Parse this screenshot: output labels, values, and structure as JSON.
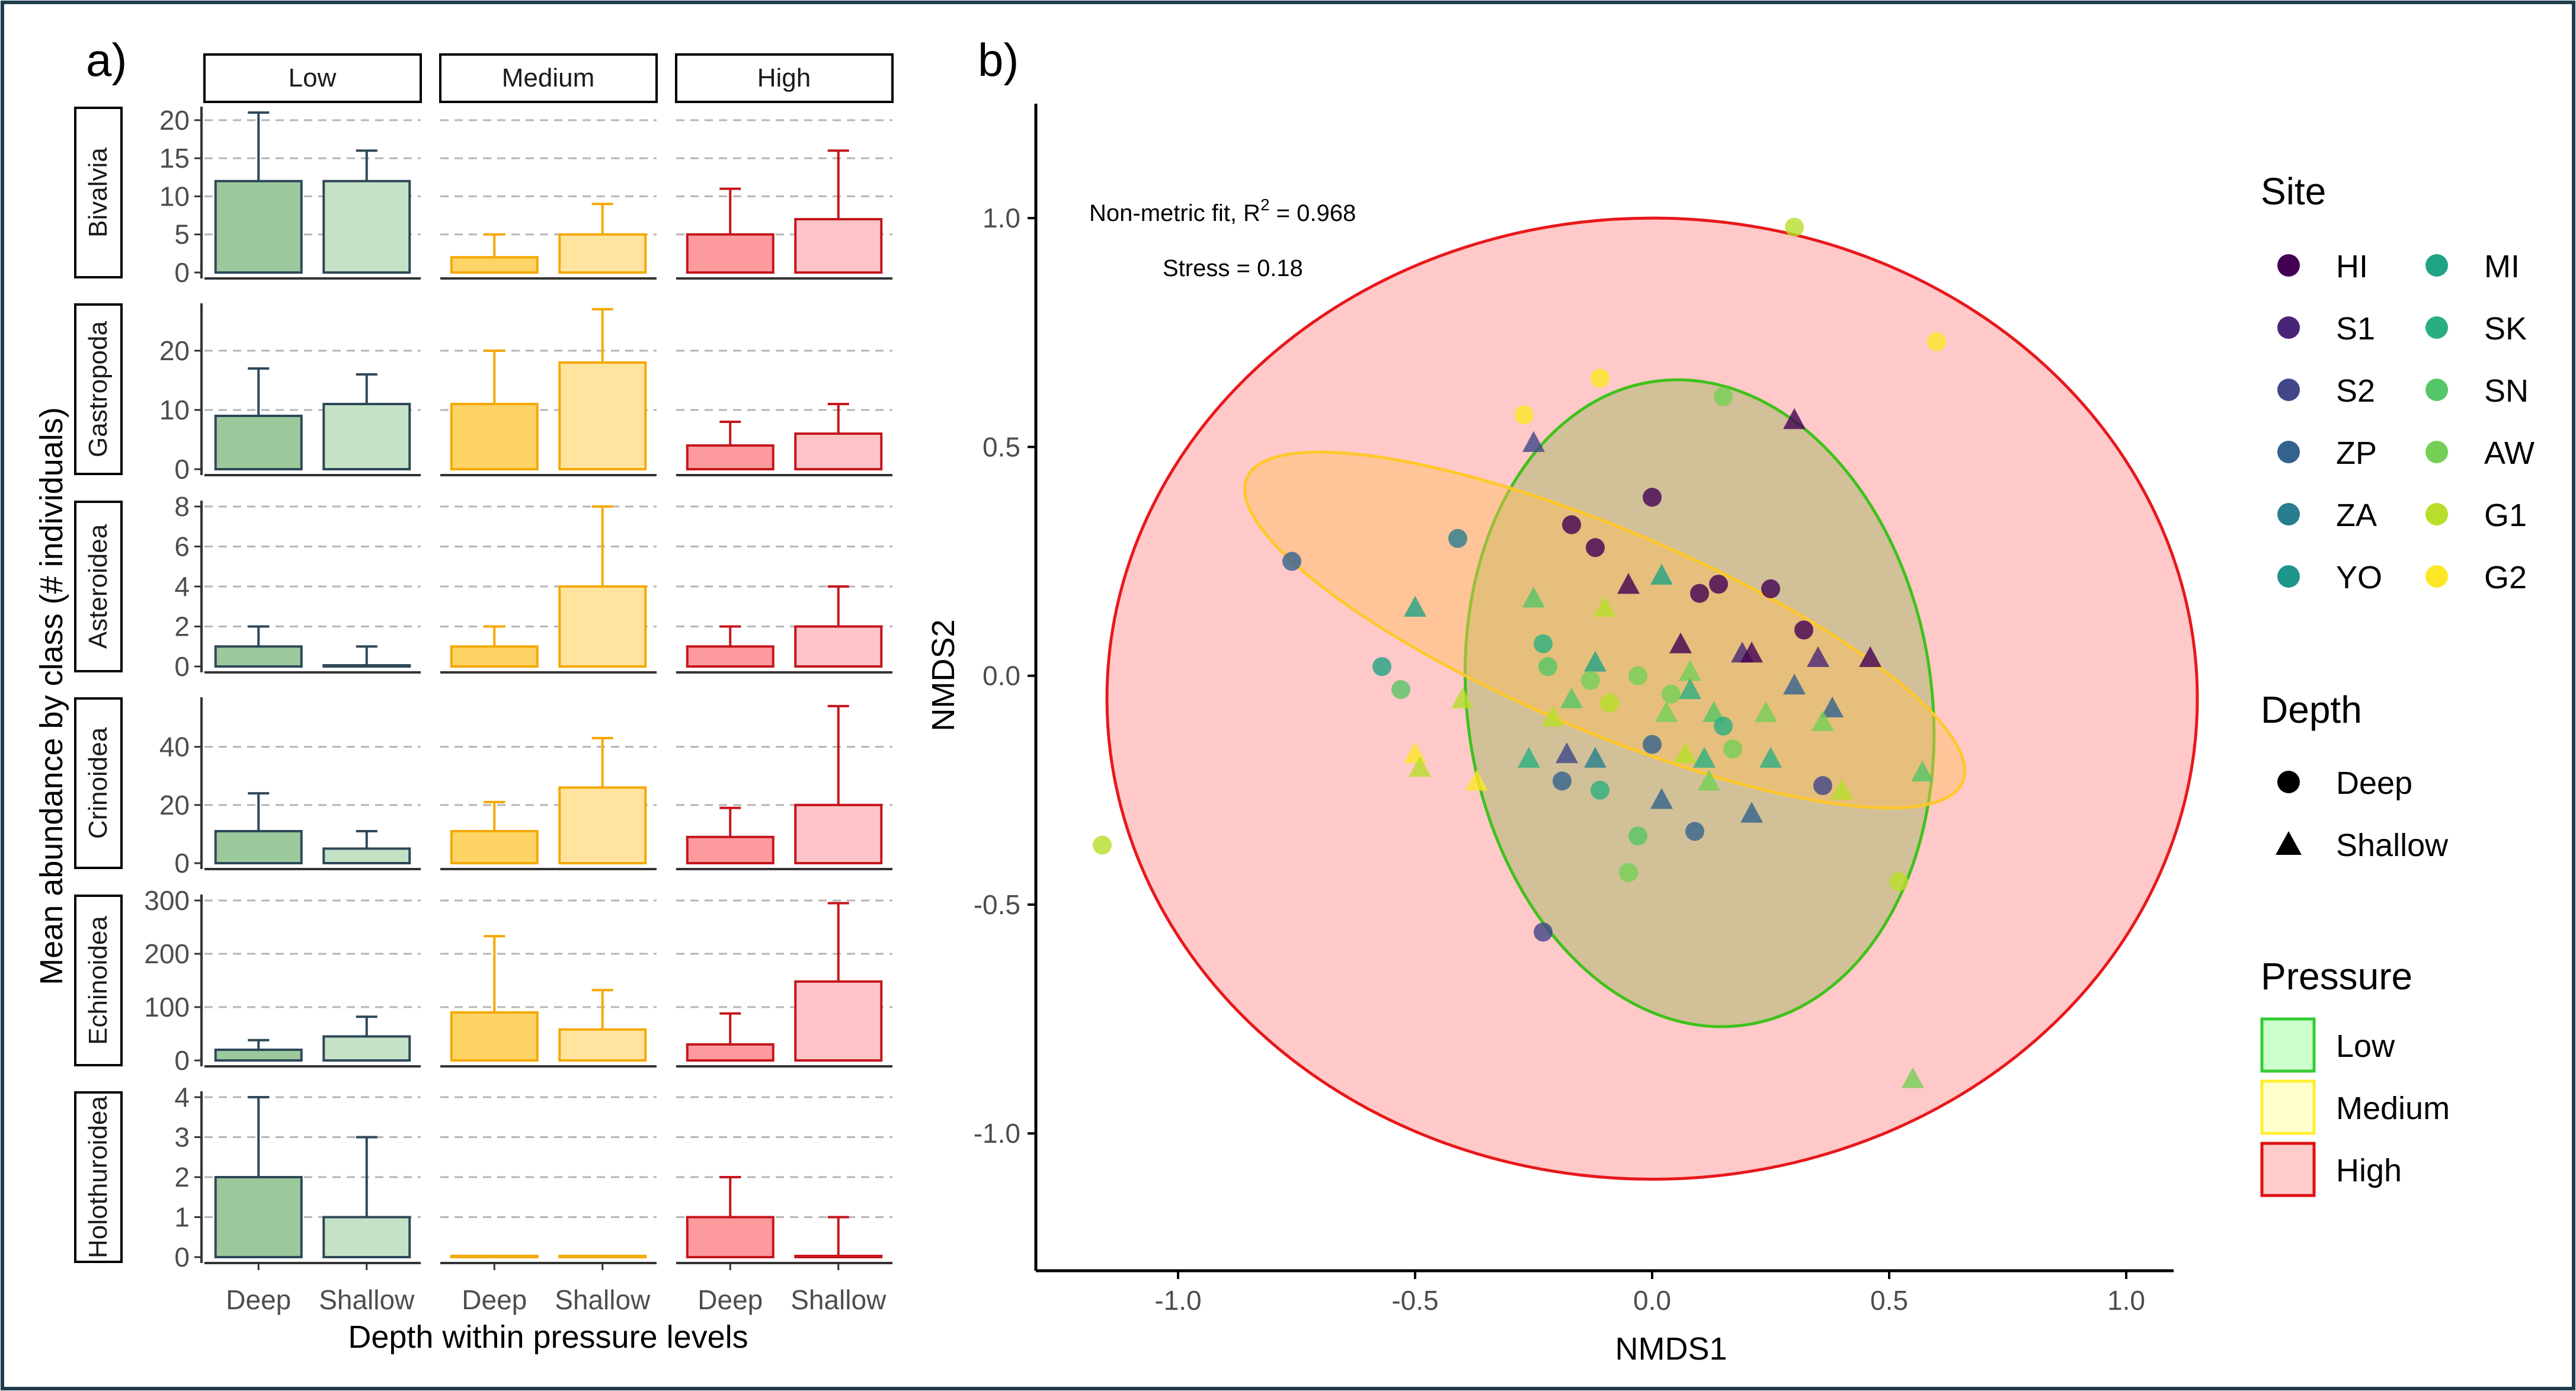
{
  "panels": {
    "a": "a)",
    "b": "b)"
  },
  "colors": {
    "low_deep": "#9bc99b",
    "low_shallow": "#c6e2c6",
    "low_stroke": "#2f4858",
    "medium_deep": "#ffd466",
    "medium_shallow": "#ffe4a0",
    "medium_stroke": "#f5a800",
    "high_deep": "#fd9a9e",
    "high_shallow": "#fcc4c6",
    "high_stroke": "#c4161c",
    "ellipse_high_fill": "#ffc9c9",
    "ellipse_high_stroke": "#e8181b",
    "ellipse_low_stroke": "#3fc21b",
    "ellipse_medium_stroke": "#ffc82a"
  },
  "bar_chart": {
    "ylabel": "Mean abundance by class (# individuals)",
    "xlabel": "Depth within pressure levels",
    "x_ticks": [
      "Deep",
      "Shallow"
    ],
    "pressure_levels": [
      "Low",
      "Medium",
      "High"
    ],
    "rows": [
      {
        "class": "Bivalvia",
        "ylim": [
          0,
          21
        ],
        "ticks": [
          0,
          5,
          10,
          15,
          20
        ],
        "tick_labels": [
          "0",
          "5",
          "10",
          "15",
          "20"
        ],
        "cells": [
          {
            "level": "Low",
            "deep": 12,
            "deep_err": 21,
            "shallow": 12,
            "shallow_err": 16
          },
          {
            "level": "Medium",
            "deep": 2,
            "deep_err": 5,
            "shallow": 5,
            "shallow_err": 9
          },
          {
            "level": "High",
            "deep": 5,
            "deep_err": 11,
            "shallow": 7,
            "shallow_err": 16
          }
        ]
      },
      {
        "class": "Gastropoda",
        "ylim": [
          0,
          27
        ],
        "ticks": [
          0,
          10,
          20
        ],
        "tick_labels": [
          "0",
          "10",
          "20"
        ],
        "cells": [
          {
            "level": "Low",
            "deep": 9,
            "deep_err": 17,
            "shallow": 11,
            "shallow_err": 16
          },
          {
            "level": "Medium",
            "deep": 11,
            "deep_err": 20,
            "shallow": 18,
            "shallow_err": 27
          },
          {
            "level": "High",
            "deep": 4,
            "deep_err": 8,
            "shallow": 6,
            "shallow_err": 11
          }
        ]
      },
      {
        "class": "Asteroidea",
        "ylim": [
          0,
          8
        ],
        "ticks": [
          0,
          2,
          4,
          6,
          8
        ],
        "tick_labels": [
          "0",
          "2",
          "4",
          "6",
          "8"
        ],
        "cells": [
          {
            "level": "Low",
            "deep": 1,
            "deep_err": 2,
            "shallow": 0,
            "shallow_err": 1
          },
          {
            "level": "Medium",
            "deep": 1,
            "deep_err": 2,
            "shallow": 4,
            "shallow_err": 8
          },
          {
            "level": "High",
            "deep": 1,
            "deep_err": 2,
            "shallow": 2,
            "shallow_err": 4
          }
        ]
      },
      {
        "class": "Crinoidea",
        "ylim": [
          0,
          55
        ],
        "ticks": [
          0,
          20,
          40
        ],
        "tick_labels": [
          "0",
          "20",
          "40"
        ],
        "cells": [
          {
            "level": "Low",
            "deep": 11,
            "deep_err": 24,
            "shallow": 5,
            "shallow_err": 11
          },
          {
            "level": "Medium",
            "deep": 11,
            "deep_err": 21,
            "shallow": 26,
            "shallow_err": 43
          },
          {
            "level": "High",
            "deep": 9,
            "deep_err": 19,
            "shallow": 20,
            "shallow_err": 54
          }
        ]
      },
      {
        "class": "Echinoidea",
        "ylim": [
          0,
          300
        ],
        "ticks": [
          0,
          100,
          200,
          300
        ],
        "tick_labels": [
          "0",
          "100",
          "200",
          "300"
        ],
        "cells": [
          {
            "level": "Low",
            "deep": 20,
            "deep_err": 38,
            "shallow": 45,
            "shallow_err": 82
          },
          {
            "level": "Medium",
            "deep": 90,
            "deep_err": 233,
            "shallow": 58,
            "shallow_err": 132
          },
          {
            "level": "High",
            "deep": 30,
            "deep_err": 88,
            "shallow": 148,
            "shallow_err": 295
          }
        ]
      },
      {
        "class": "Holothuroidea",
        "ylim": [
          0,
          4
        ],
        "ticks": [
          0,
          1,
          2,
          3,
          4
        ],
        "tick_labels": [
          "0",
          "1",
          "2",
          "3",
          "4"
        ],
        "cells": [
          {
            "level": "Low",
            "deep": 2,
            "deep_err": 4,
            "shallow": 1,
            "shallow_err": 3
          },
          {
            "level": "Medium",
            "deep": 0,
            "deep_err": 0,
            "shallow": 0,
            "shallow_err": 0
          },
          {
            "level": "High",
            "deep": 1,
            "deep_err": 2,
            "shallow": 0,
            "shallow_err": 1
          }
        ]
      }
    ]
  },
  "nmds": {
    "xlabel": "NMDS1",
    "ylabel": "NMDS2",
    "xlim": [
      -1.3,
      1.1
    ],
    "ylim": [
      -1.3,
      1.25
    ],
    "x_ticks": [
      -1.0,
      -0.5,
      0.0,
      0.5,
      1.0
    ],
    "x_tick_labels": [
      "-1.0",
      "-0.5",
      "0.0",
      "0.5",
      "1.0"
    ],
    "y_ticks": [
      -1.0,
      -0.5,
      0.0,
      0.5,
      1.0
    ],
    "y_tick_labels": [
      "-1.0",
      "-0.5",
      "0.0",
      "0.5",
      "1.0"
    ],
    "fit_label": "Non-metric fit, R",
    "fit_exponent": "2",
    "fit_value": " = 0.968",
    "stress": "Stress = 0.18",
    "ellipses": [
      {
        "pressure": "High",
        "cx": 0.0,
        "cy": -0.05,
        "rx": 1.15,
        "ry": 1.05,
        "angle": 0
      },
      {
        "pressure": "Low",
        "cx": 0.1,
        "cy": -0.06,
        "rx": 0.49,
        "ry": 0.71,
        "angle": -8
      },
      {
        "pressure": "Medium",
        "cx": -0.1,
        "cy": 0.1,
        "rx": 0.82,
        "ry": 0.22,
        "angle": 23
      }
    ],
    "points": [
      {
        "x": 0.3,
        "y": 0.98,
        "shape": "circle",
        "site": "G1"
      },
      {
        "x": 0.6,
        "y": 0.73,
        "shape": "circle",
        "site": "G2"
      },
      {
        "x": -0.27,
        "y": 0.57,
        "shape": "circle",
        "site": "G2"
      },
      {
        "x": -0.11,
        "y": 0.65,
        "shape": "circle",
        "site": "G2"
      },
      {
        "x": 0.15,
        "y": 0.61,
        "shape": "circle",
        "site": "AW"
      },
      {
        "x": -0.25,
        "y": 0.51,
        "shape": "triangle",
        "site": "S2"
      },
      {
        "x": 0.3,
        "y": 0.56,
        "shape": "triangle",
        "site": "HI"
      },
      {
        "x": 0.0,
        "y": 0.39,
        "shape": "circle",
        "site": "HI"
      },
      {
        "x": -0.17,
        "y": 0.33,
        "shape": "circle",
        "site": "HI"
      },
      {
        "x": -0.12,
        "y": 0.28,
        "shape": "circle",
        "site": "HI"
      },
      {
        "x": -0.41,
        "y": 0.3,
        "shape": "circle",
        "site": "ZA"
      },
      {
        "x": -0.76,
        "y": 0.25,
        "shape": "circle",
        "site": "ZP"
      },
      {
        "x": -0.05,
        "y": 0.2,
        "shape": "triangle",
        "site": "HI"
      },
      {
        "x": 0.02,
        "y": 0.22,
        "shape": "triangle",
        "site": "MI"
      },
      {
        "x": 0.1,
        "y": 0.18,
        "shape": "circle",
        "site": "HI"
      },
      {
        "x": 0.14,
        "y": 0.2,
        "shape": "circle",
        "site": "HI"
      },
      {
        "x": 0.25,
        "y": 0.19,
        "shape": "circle",
        "site": "HI"
      },
      {
        "x": -0.25,
        "y": 0.17,
        "shape": "triangle",
        "site": "SN"
      },
      {
        "x": -0.5,
        "y": 0.15,
        "shape": "triangle",
        "site": "MI"
      },
      {
        "x": -0.1,
        "y": 0.15,
        "shape": "triangle",
        "site": "G1"
      },
      {
        "x": 0.32,
        "y": 0.1,
        "shape": "circle",
        "site": "HI"
      },
      {
        "x": 0.06,
        "y": 0.07,
        "shape": "triangle",
        "site": "HI"
      },
      {
        "x": 0.19,
        "y": 0.05,
        "shape": "triangle",
        "site": "S1"
      },
      {
        "x": 0.21,
        "y": 0.05,
        "shape": "triangle",
        "site": "HI"
      },
      {
        "x": 0.35,
        "y": 0.04,
        "shape": "triangle",
        "site": "S1"
      },
      {
        "x": 0.46,
        "y": 0.04,
        "shape": "triangle",
        "site": "HI"
      },
      {
        "x": -0.23,
        "y": 0.07,
        "shape": "circle",
        "site": "SK"
      },
      {
        "x": -0.22,
        "y": 0.02,
        "shape": "circle",
        "site": "SN"
      },
      {
        "x": -0.12,
        "y": 0.03,
        "shape": "triangle",
        "site": "MI"
      },
      {
        "x": -0.57,
        "y": 0.02,
        "shape": "circle",
        "site": "MI"
      },
      {
        "x": -0.53,
        "y": -0.03,
        "shape": "circle",
        "site": "SN"
      },
      {
        "x": -0.4,
        "y": -0.05,
        "shape": "triangle",
        "site": "G1"
      },
      {
        "x": -0.17,
        "y": -0.05,
        "shape": "triangle",
        "site": "SN"
      },
      {
        "x": -0.13,
        "y": -0.01,
        "shape": "circle",
        "site": "AW"
      },
      {
        "x": -0.03,
        "y": 0.0,
        "shape": "circle",
        "site": "AW"
      },
      {
        "x": -0.21,
        "y": -0.09,
        "shape": "triangle",
        "site": "G1"
      },
      {
        "x": -0.09,
        "y": -0.06,
        "shape": "circle",
        "site": "G1"
      },
      {
        "x": 0.04,
        "y": -0.04,
        "shape": "circle",
        "site": "AW"
      },
      {
        "x": 0.08,
        "y": 0.01,
        "shape": "triangle",
        "site": "AW"
      },
      {
        "x": 0.08,
        "y": -0.03,
        "shape": "triangle",
        "site": "SK"
      },
      {
        "x": 0.03,
        "y": -0.08,
        "shape": "triangle",
        "site": "AW"
      },
      {
        "x": 0.13,
        "y": -0.08,
        "shape": "triangle",
        "site": "SN"
      },
      {
        "x": 0.15,
        "y": -0.11,
        "shape": "circle",
        "site": "SK"
      },
      {
        "x": 0.24,
        "y": -0.08,
        "shape": "triangle",
        "site": "AW"
      },
      {
        "x": 0.3,
        "y": -0.02,
        "shape": "triangle",
        "site": "ZP"
      },
      {
        "x": 0.38,
        "y": -0.07,
        "shape": "triangle",
        "site": "ZP"
      },
      {
        "x": 0.36,
        "y": -0.1,
        "shape": "triangle",
        "site": "AW"
      },
      {
        "x": -0.5,
        "y": -0.17,
        "shape": "triangle",
        "site": "G2"
      },
      {
        "x": -0.49,
        "y": -0.2,
        "shape": "triangle",
        "site": "G1"
      },
      {
        "x": -0.37,
        "y": -0.23,
        "shape": "triangle",
        "site": "G2"
      },
      {
        "x": -0.26,
        "y": -0.18,
        "shape": "triangle",
        "site": "SK"
      },
      {
        "x": -0.18,
        "y": -0.17,
        "shape": "triangle",
        "site": "S2"
      },
      {
        "x": -0.12,
        "y": -0.18,
        "shape": "triangle",
        "site": "ZA"
      },
      {
        "x": -0.19,
        "y": -0.23,
        "shape": "circle",
        "site": "ZP"
      },
      {
        "x": -0.11,
        "y": -0.25,
        "shape": "circle",
        "site": "SK"
      },
      {
        "x": 0.0,
        "y": -0.15,
        "shape": "circle",
        "site": "ZP"
      },
      {
        "x": 0.07,
        "y": -0.17,
        "shape": "triangle",
        "site": "G1"
      },
      {
        "x": 0.11,
        "y": -0.18,
        "shape": "triangle",
        "site": "SK"
      },
      {
        "x": 0.17,
        "y": -0.16,
        "shape": "circle",
        "site": "AW"
      },
      {
        "x": 0.25,
        "y": -0.18,
        "shape": "triangle",
        "site": "SK"
      },
      {
        "x": 0.02,
        "y": -0.27,
        "shape": "triangle",
        "site": "ZP"
      },
      {
        "x": 0.12,
        "y": -0.23,
        "shape": "triangle",
        "site": "AW"
      },
      {
        "x": 0.21,
        "y": -0.3,
        "shape": "triangle",
        "site": "ZP"
      },
      {
        "x": 0.09,
        "y": -0.34,
        "shape": "circle",
        "site": "ZP"
      },
      {
        "x": -0.03,
        "y": -0.35,
        "shape": "circle",
        "site": "SN"
      },
      {
        "x": -0.05,
        "y": -0.43,
        "shape": "circle",
        "site": "AW"
      },
      {
        "x": 0.36,
        "y": -0.24,
        "shape": "circle",
        "site": "S2"
      },
      {
        "x": 0.4,
        "y": -0.25,
        "shape": "triangle",
        "site": "G1"
      },
      {
        "x": 0.57,
        "y": -0.21,
        "shape": "triangle",
        "site": "SN"
      },
      {
        "x": 0.52,
        "y": -0.45,
        "shape": "circle",
        "site": "G1"
      },
      {
        "x": 0.55,
        "y": -0.88,
        "shape": "triangle",
        "site": "AW"
      },
      {
        "x": -0.23,
        "y": -0.56,
        "shape": "circle",
        "site": "S2"
      },
      {
        "x": -1.16,
        "y": -0.37,
        "shape": "circle",
        "site": "G1"
      }
    ]
  },
  "legend": {
    "site_title": "Site",
    "sites": [
      {
        "label": "HI",
        "color": "#440154"
      },
      {
        "label": "S1",
        "color": "#482677"
      },
      {
        "label": "S2",
        "color": "#404688"
      },
      {
        "label": "ZP",
        "color": "#33638d"
      },
      {
        "label": "ZA",
        "color": "#287d8e"
      },
      {
        "label": "YO",
        "color": "#1f968b"
      },
      {
        "label": "MI",
        "color": "#20a386"
      },
      {
        "label": "SK",
        "color": "#29af7f"
      },
      {
        "label": "SN",
        "color": "#55c667"
      },
      {
        "label": "AW",
        "color": "#73d055"
      },
      {
        "label": "G1",
        "color": "#b8de29"
      },
      {
        "label": "G2",
        "color": "#fde725"
      }
    ],
    "depth_title": "Depth",
    "depths": [
      {
        "label": "Deep",
        "shape": "circle"
      },
      {
        "label": "Shallow",
        "shape": "triangle"
      }
    ],
    "pressure_title": "Pressure",
    "pressures": [
      {
        "label": "Low",
        "fill": "#ccffcc",
        "stroke": "#33cc33"
      },
      {
        "label": "Medium",
        "fill": "#ffffcc",
        "stroke": "#ffee33"
      },
      {
        "label": "High",
        "fill": "#ffcccc",
        "stroke": "#dd1111"
      }
    ]
  }
}
